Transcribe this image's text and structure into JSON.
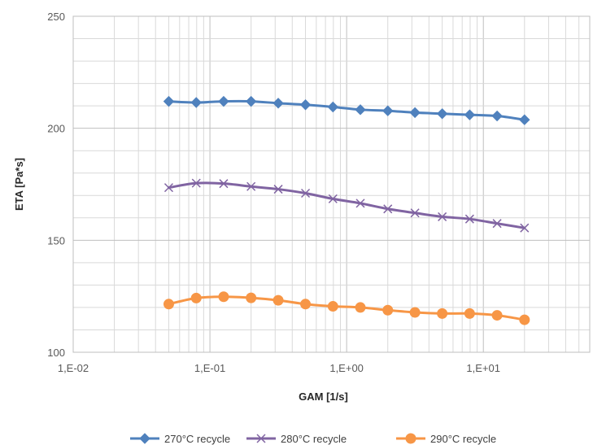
{
  "chart_data": {
    "type": "line",
    "title": "",
    "xlabel": "GAM [1/s]",
    "ylabel": "ETA [Pa*s]",
    "xscale": "log",
    "xlim": [
      0.01,
      60
    ],
    "ylim": [
      100,
      250
    ],
    "x_ticks": [
      {
        "value": 0.01,
        "label": "1,E-02"
      },
      {
        "value": 0.1,
        "label": "1,E-01"
      },
      {
        "value": 1,
        "label": "1,E+00"
      },
      {
        "value": 10,
        "label": "1,E+01"
      }
    ],
    "y_ticks": [
      {
        "value": 100,
        "label": "100"
      },
      {
        "value": 150,
        "label": "150"
      },
      {
        "value": 200,
        "label": "200"
      },
      {
        "value": 250,
        "label": "250"
      }
    ],
    "grid": true,
    "legend_position": "bottom",
    "x": [
      0.05,
      0.0794,
      0.126,
      0.2,
      0.316,
      0.5,
      0.794,
      1.26,
      2.0,
      3.16,
      5.0,
      7.94,
      12.6,
      20.0
    ],
    "series": [
      {
        "name": "270°C recycle",
        "color": "#4f81bd",
        "marker": "diamond",
        "values": [
          212,
          211.5,
          212,
          212,
          211.2,
          210.5,
          209.5,
          208.3,
          207.8,
          207,
          206.5,
          206,
          205.5,
          203.8
        ]
      },
      {
        "name": "280°C recycle",
        "color": "#8064a2",
        "marker": "x",
        "values": [
          173.5,
          175.5,
          175.3,
          174,
          172.8,
          171,
          168.5,
          166.5,
          164,
          162.2,
          160.5,
          159.5,
          157.5,
          155.5
        ]
      },
      {
        "name": "290°C recycle",
        "color": "#f79646",
        "marker": "circle",
        "values": [
          121.5,
          124.2,
          124.8,
          124.3,
          123.2,
          121.5,
          120.5,
          120,
          118.8,
          117.8,
          117.3,
          117.3,
          116.5,
          114.5
        ]
      }
    ]
  }
}
